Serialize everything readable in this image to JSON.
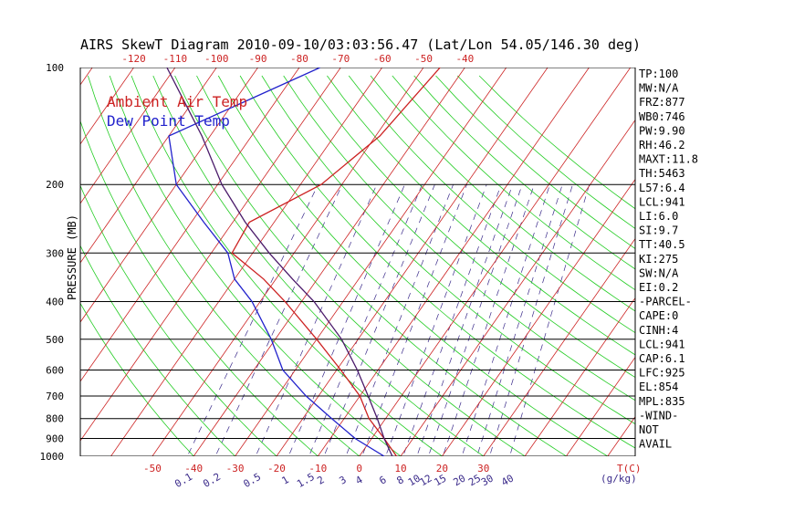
{
  "chart_data": {
    "type": "line",
    "title": "AIRS SkewT Diagram 2010-09-10/03:03:56.47 (Lat/Lon 54.05/146.30 deg)",
    "ylabel": "PRESSURE (MB)",
    "legend": [
      "Ambient Air Temp",
      "Dew Point Temp"
    ],
    "legend_colors": [
      "#cc2222",
      "#2222cc"
    ],
    "pressure_levels": [
      "100",
      "200",
      "300",
      "400",
      "500",
      "600",
      "700",
      "800",
      "900",
      "1000"
    ],
    "top_temp_labels": [
      "-120",
      "-110",
      "-100",
      "-90",
      "-80",
      "-70",
      "-60",
      "-50",
      "-40"
    ],
    "bottom_temp_labels": [
      "-50",
      "-40",
      "-30",
      "-20",
      "-10",
      "0",
      "10",
      "20",
      "30"
    ],
    "bottom_unit_label": "T(C)",
    "mixing_ratio_labels": [
      "0.1",
      "0.2",
      "0.5",
      "1",
      "1.5",
      "2",
      "3",
      "4",
      "6",
      "8",
      "10",
      "12",
      "15",
      "20",
      "25",
      "30",
      "40"
    ],
    "mixing_ratio_unit": "(g/kg)",
    "series": [
      {
        "name": "Ambient Air Temp",
        "color": "#cc2222",
        "points": [
          [
            100,
            -46
          ],
          [
            150,
            -49
          ],
          [
            200,
            -55
          ],
          [
            250,
            -66
          ],
          [
            300,
            -65
          ],
          [
            350,
            -53
          ],
          [
            400,
            -44
          ],
          [
            500,
            -30
          ],
          [
            600,
            -19
          ],
          [
            700,
            -10
          ],
          [
            800,
            -4
          ],
          [
            900,
            3
          ],
          [
            1000,
            9
          ]
        ]
      },
      {
        "name": "Dew Point Temp",
        "color": "#2222cc",
        "points": [
          [
            100,
            -75
          ],
          [
            150,
            -100
          ],
          [
            200,
            -90
          ],
          [
            250,
            -77
          ],
          [
            300,
            -66
          ],
          [
            350,
            -60
          ],
          [
            400,
            -52
          ],
          [
            500,
            -41
          ],
          [
            600,
            -33
          ],
          [
            700,
            -23
          ],
          [
            800,
            -13
          ],
          [
            900,
            -4
          ],
          [
            1000,
            6
          ]
        ]
      },
      {
        "name": "Parcel",
        "color": "#4a1a6a",
        "points": [
          [
            100,
            -112
          ],
          [
            150,
            -92
          ],
          [
            200,
            -79
          ],
          [
            250,
            -67
          ],
          [
            300,
            -56
          ],
          [
            350,
            -46
          ],
          [
            400,
            -37
          ],
          [
            500,
            -24
          ],
          [
            600,
            -15
          ],
          [
            700,
            -8
          ],
          [
            800,
            -2
          ],
          [
            900,
            3
          ],
          [
            1000,
            8
          ]
        ]
      }
    ],
    "indices": [
      "TP:100",
      "MW:N/A",
      "FRZ:877",
      "WB0:746",
      "PW:9.90",
      "RH:46.2",
      "MAXT:11.8",
      "TH:5463",
      "L57:6.4",
      "LCL:941",
      "LI:6.0",
      "SI:9.7",
      "TT:40.5",
      "KI:275",
      "SW:N/A",
      "EI:0.2",
      "-PARCEL-",
      "CAPE:0",
      "CINH:4",
      "LCL:941",
      "CAP:6.1",
      "LFC:925",
      "EL:854",
      "MPL:835",
      "-WIND-",
      "NOT",
      "AVAIL"
    ]
  },
  "colors": {
    "isotherm": "#cc2222",
    "dry_adiabat": "#22cc22",
    "mixing_ratio": "#3a2a8a",
    "isobar": "#000000"
  }
}
